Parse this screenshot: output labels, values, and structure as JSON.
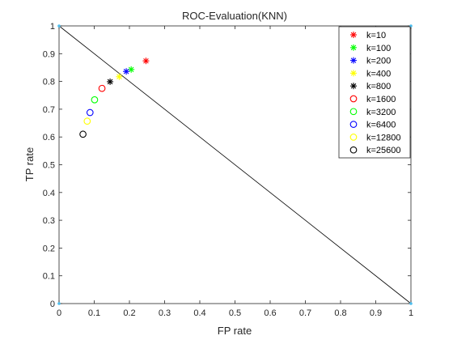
{
  "chart_data": {
    "type": "scatter",
    "title": "ROC-Evaluation(KNN)",
    "xlabel": "FP rate",
    "ylabel": "TP rate",
    "xlim": [
      0,
      1
    ],
    "ylim": [
      0,
      1
    ],
    "xticks": [
      "0",
      "0.1",
      "0.2",
      "0.3",
      "0.4",
      "0.5",
      "0.6",
      "0.7",
      "0.8",
      "0.9",
      "1"
    ],
    "yticks": [
      "0",
      "0.1",
      "0.2",
      "0.3",
      "0.4",
      "0.5",
      "0.6",
      "0.7",
      "0.8",
      "0.9",
      "1"
    ],
    "grid": false,
    "legend_position": "top-right",
    "reference_line": {
      "x": [
        0,
        1
      ],
      "y": [
        1,
        0
      ],
      "color": "#000000"
    },
    "corner_points": [
      {
        "x": 0,
        "y": 0
      },
      {
        "x": 0,
        "y": 1
      },
      {
        "x": 1,
        "y": 0
      },
      {
        "x": 1,
        "y": 1
      }
    ],
    "corner_color": "#4dbeee",
    "series": [
      {
        "name": "k=10",
        "marker": "star",
        "color": "#ff0000",
        "x": 0.247,
        "y": 0.874
      },
      {
        "name": "k=100",
        "marker": "star",
        "color": "#00ff00",
        "x": 0.205,
        "y": 0.843
      },
      {
        "name": "k=200",
        "marker": "star",
        "color": "#0000ff",
        "x": 0.191,
        "y": 0.836
      },
      {
        "name": "k=400",
        "marker": "star",
        "color": "#ffff00",
        "x": 0.171,
        "y": 0.817
      },
      {
        "name": "k=800",
        "marker": "star",
        "color": "#000000",
        "x": 0.145,
        "y": 0.799
      },
      {
        "name": "k=1600",
        "marker": "circle",
        "color": "#ff0000",
        "x": 0.122,
        "y": 0.775
      },
      {
        "name": "k=3200",
        "marker": "circle",
        "color": "#00ff00",
        "x": 0.101,
        "y": 0.734
      },
      {
        "name": "k=6400",
        "marker": "circle",
        "color": "#0000ff",
        "x": 0.088,
        "y": 0.688
      },
      {
        "name": "k=12800",
        "marker": "circle",
        "color": "#ffff00",
        "x": 0.08,
        "y": 0.657
      },
      {
        "name": "k=25600",
        "marker": "circle",
        "color": "#000000",
        "x": 0.068,
        "y": 0.61
      }
    ]
  }
}
